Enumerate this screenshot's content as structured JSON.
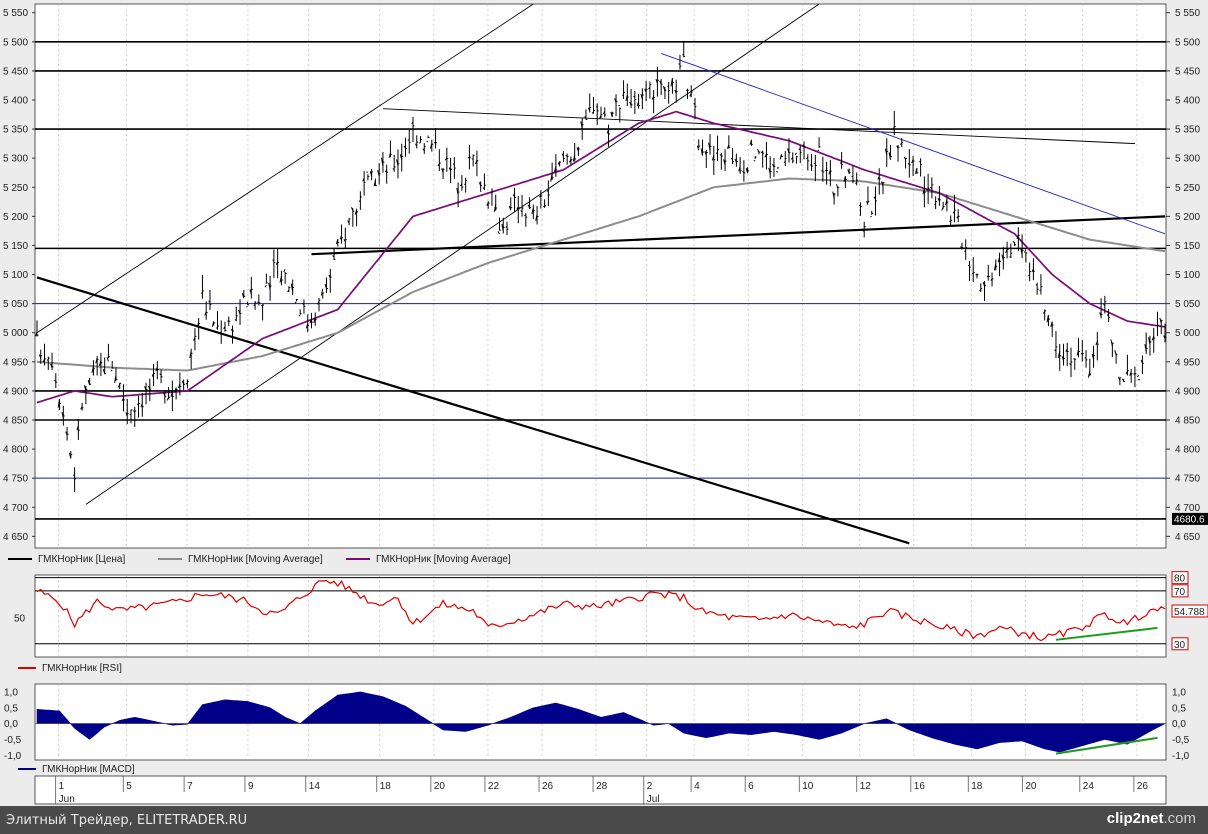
{
  "chart_data": [
    {
      "type": "candlestick",
      "ylim": [
        4630,
        5565
      ],
      "y_ticks": [
        "5 550",
        "5 500",
        "5 450",
        "5 400",
        "5 350",
        "5 300",
        "5 250",
        "5 200",
        "5 150",
        "5 100",
        "5 050",
        "5 000",
        "4 950",
        "4 900",
        "4 850",
        "4 800",
        "4 750",
        "4 700",
        "4 650"
      ],
      "y_tick_values": [
        5550,
        5500,
        5450,
        5400,
        5350,
        5300,
        5250,
        5200,
        5150,
        5100,
        5050,
        5000,
        4950,
        4900,
        4850,
        4800,
        4750,
        4700,
        4650
      ],
      "price_badge": "4680.6",
      "horizontal_levels": [
        {
          "value": 5500,
          "color": "#000000"
        },
        {
          "value": 5450,
          "color": "#000000"
        },
        {
          "value": 5350,
          "color": "#000000"
        },
        {
          "value": 5145,
          "color": "#000000"
        },
        {
          "value": 5050,
          "color": "#1a1aa8"
        },
        {
          "value": 4900,
          "color": "#000000"
        },
        {
          "value": 4850,
          "color": "#000000"
        },
        {
          "value": 4750,
          "color": "#1a1aa8"
        },
        {
          "value": 4680,
          "color": "#000000"
        }
      ],
      "close_path": [
        [
          0,
          4980
        ],
        [
          4,
          4960
        ],
        [
          8,
          4830
        ],
        [
          10,
          4760
        ],
        [
          12,
          4880
        ],
        [
          16,
          4940
        ],
        [
          20,
          4950
        ],
        [
          24,
          4870
        ],
        [
          28,
          4890
        ],
        [
          32,
          4920
        ],
        [
          36,
          4900
        ],
        [
          40,
          4935
        ],
        [
          44,
          5060
        ],
        [
          48,
          5010
        ],
        [
          52,
          5020
        ],
        [
          56,
          5060
        ],
        [
          60,
          5050
        ],
        [
          64,
          5120
        ],
        [
          68,
          5080
        ],
        [
          72,
          5020
        ],
        [
          76,
          5060
        ],
        [
          80,
          5140
        ],
        [
          84,
          5210
        ],
        [
          88,
          5250
        ],
        [
          92,
          5280
        ],
        [
          96,
          5300
        ],
        [
          100,
          5350
        ],
        [
          104,
          5330
        ],
        [
          108,
          5300
        ],
        [
          112,
          5260
        ],
        [
          116,
          5300
        ],
        [
          120,
          5240
        ],
        [
          124,
          5180
        ],
        [
          128,
          5230
        ],
        [
          132,
          5200
        ],
        [
          136,
          5240
        ],
        [
          140,
          5300
        ],
        [
          144,
          5320
        ],
        [
          148,
          5400
        ],
        [
          152,
          5360
        ],
        [
          156,
          5420
        ],
        [
          160,
          5380
        ],
        [
          164,
          5420
        ],
        [
          168,
          5400
        ],
        [
          172,
          5460
        ],
        [
          176,
          5340
        ],
        [
          180,
          5300
        ],
        [
          184,
          5310
        ],
        [
          188,
          5290
        ],
        [
          192,
          5320
        ],
        [
          196,
          5280
        ],
        [
          200,
          5300
        ],
        [
          204,
          5310
        ],
        [
          208,
          5300
        ],
        [
          212,
          5250
        ],
        [
          216,
          5290
        ],
        [
          220,
          5200
        ],
        [
          224,
          5250
        ],
        [
          228,
          5340
        ],
        [
          232,
          5300
        ],
        [
          236,
          5260
        ],
        [
          240,
          5240
        ],
        [
          244,
          5200
        ],
        [
          248,
          5130
        ],
        [
          252,
          5080
        ],
        [
          256,
          5140
        ],
        [
          260,
          5160
        ],
        [
          264,
          5120
        ],
        [
          268,
          5040
        ],
        [
          272,
          4980
        ],
        [
          276,
          4960
        ],
        [
          280,
          4940
        ],
        [
          284,
          5050
        ],
        [
          288,
          4920
        ],
        [
          292,
          4920
        ],
        [
          296,
          4990
        ],
        [
          300,
          5010
        ]
      ],
      "ma_long_path": [
        [
          0,
          4950
        ],
        [
          20,
          4940
        ],
        [
          40,
          4935
        ],
        [
          60,
          4960
        ],
        [
          80,
          5000
        ],
        [
          100,
          5070
        ],
        [
          120,
          5120
        ],
        [
          140,
          5160
        ],
        [
          160,
          5200
        ],
        [
          180,
          5250
        ],
        [
          200,
          5265
        ],
        [
          220,
          5260
        ],
        [
          240,
          5240
        ],
        [
          260,
          5200
        ],
        [
          280,
          5160
        ],
        [
          300,
          5140
        ]
      ],
      "ma_short_path": [
        [
          0,
          4880
        ],
        [
          10,
          4900
        ],
        [
          20,
          4890
        ],
        [
          40,
          4900
        ],
        [
          60,
          4990
        ],
        [
          80,
          5040
        ],
        [
          100,
          5200
        ],
        [
          120,
          5240
        ],
        [
          140,
          5280
        ],
        [
          160,
          5360
        ],
        [
          170,
          5380
        ],
        [
          180,
          5360
        ],
        [
          200,
          5330
        ],
        [
          220,
          5280
        ],
        [
          240,
          5240
        ],
        [
          260,
          5170
        ],
        [
          270,
          5100
        ],
        [
          280,
          5050
        ],
        [
          290,
          5020
        ],
        [
          300,
          5010
        ]
      ],
      "legend": [
        "ГМКНорНик [Цена]",
        "ГМКНорНик [Moving Average]",
        "ГМКНорНик [Moving Average]"
      ],
      "legend_colors": [
        "#000000",
        "#8c8c8c",
        "#7a0a7a"
      ]
    },
    {
      "type": "line",
      "ylim": [
        20,
        82
      ],
      "y_tick_label": "50",
      "right_badges": [
        "80",
        "70",
        "54.788",
        "30"
      ],
      "badge_values": [
        80,
        70,
        54.788,
        30
      ],
      "levels": [
        80,
        70,
        30
      ],
      "rsi_path": [
        [
          0,
          70
        ],
        [
          6,
          62
        ],
        [
          10,
          45
        ],
        [
          16,
          62
        ],
        [
          22,
          55
        ],
        [
          30,
          58
        ],
        [
          38,
          62
        ],
        [
          44,
          68
        ],
        [
          50,
          66
        ],
        [
          56,
          62
        ],
        [
          60,
          55
        ],
        [
          64,
          52
        ],
        [
          70,
          65
        ],
        [
          76,
          78
        ],
        [
          80,
          76
        ],
        [
          84,
          70
        ],
        [
          90,
          60
        ],
        [
          96,
          65
        ],
        [
          100,
          45
        ],
        [
          108,
          60
        ],
        [
          116,
          55
        ],
        [
          120,
          42
        ],
        [
          130,
          50
        ],
        [
          140,
          60
        ],
        [
          148,
          58
        ],
        [
          156,
          62
        ],
        [
          164,
          68
        ],
        [
          172,
          65
        ],
        [
          176,
          55
        ],
        [
          184,
          50
        ],
        [
          192,
          48
        ],
        [
          200,
          52
        ],
        [
          208,
          47
        ],
        [
          216,
          42
        ],
        [
          220,
          45
        ],
        [
          226,
          55
        ],
        [
          232,
          50
        ],
        [
          238,
          45
        ],
        [
          244,
          40
        ],
        [
          250,
          36
        ],
        [
          256,
          42
        ],
        [
          262,
          38
        ],
        [
          268,
          34
        ],
        [
          276,
          40
        ],
        [
          284,
          52
        ],
        [
          290,
          45
        ],
        [
          296,
          56
        ],
        [
          300,
          54.788
        ]
      ],
      "divergence_line": [
        [
          271,
          33
        ],
        [
          298,
          42
        ]
      ],
      "legend": [
        "ГМКНорНик [RSI]"
      ],
      "legend_colors": [
        "#dd0000"
      ]
    },
    {
      "type": "histogram",
      "ylim": [
        -1.15,
        1.25
      ],
      "y_ticks": [
        "1,0",
        "0,5",
        "0,0",
        "-0,5",
        "-1,0"
      ],
      "y_tick_values": [
        1.0,
        0.5,
        0.0,
        -0.5,
        -1.0
      ],
      "macd_path": [
        [
          0,
          0.45
        ],
        [
          6,
          0.4
        ],
        [
          10,
          -0.15
        ],
        [
          14,
          -0.5
        ],
        [
          18,
          -0.1
        ],
        [
          22,
          0.1
        ],
        [
          26,
          0.2
        ],
        [
          30,
          0.1
        ],
        [
          36,
          -0.05
        ],
        [
          40,
          -0.02
        ],
        [
          44,
          0.6
        ],
        [
          50,
          0.75
        ],
        [
          56,
          0.7
        ],
        [
          62,
          0.5
        ],
        [
          66,
          0.2
        ],
        [
          70,
          0.0
        ],
        [
          74,
          0.4
        ],
        [
          80,
          0.9
        ],
        [
          86,
          1.0
        ],
        [
          92,
          0.85
        ],
        [
          98,
          0.55
        ],
        [
          104,
          0.1
        ],
        [
          108,
          -0.2
        ],
        [
          114,
          -0.25
        ],
        [
          120,
          -0.05
        ],
        [
          126,
          0.2
        ],
        [
          132,
          0.5
        ],
        [
          138,
          0.65
        ],
        [
          144,
          0.45
        ],
        [
          150,
          0.2
        ],
        [
          156,
          0.35
        ],
        [
          160,
          0.15
        ],
        [
          164,
          -0.05
        ],
        [
          168,
          0.0
        ],
        [
          172,
          -0.3
        ],
        [
          178,
          -0.45
        ],
        [
          184,
          -0.3
        ],
        [
          190,
          -0.35
        ],
        [
          196,
          -0.25
        ],
        [
          202,
          -0.35
        ],
        [
          208,
          -0.5
        ],
        [
          214,
          -0.3
        ],
        [
          220,
          0.0
        ],
        [
          226,
          0.15
        ],
        [
          232,
          -0.2
        ],
        [
          238,
          -0.45
        ],
        [
          244,
          -0.65
        ],
        [
          250,
          -0.8
        ],
        [
          256,
          -0.6
        ],
        [
          262,
          -0.55
        ],
        [
          268,
          -0.8
        ],
        [
          272,
          -0.9
        ],
        [
          278,
          -0.7
        ],
        [
          284,
          -0.5
        ],
        [
          290,
          -0.65
        ],
        [
          296,
          -0.25
        ],
        [
          300,
          0.0
        ]
      ],
      "divergence_line": [
        [
          271,
          -0.95
        ],
        [
          298,
          -0.45
        ]
      ],
      "legend": [
        "ГМКНорНик [MACD]"
      ],
      "legend_colors": [
        "#00008b"
      ]
    }
  ],
  "x_axis": {
    "date_labels": [
      "1",
      "5",
      "7",
      "9",
      "14",
      "18",
      "20",
      "22",
      "26",
      "28",
      "2",
      "4",
      "6",
      "10",
      "12",
      "16",
      "18",
      "20",
      "24",
      "26"
    ],
    "date_index": [
      7,
      27,
      45,
      63,
      81,
      102,
      118,
      134,
      150,
      166,
      181,
      195,
      211,
      227,
      244,
      260,
      277,
      293,
      310,
      326
    ],
    "month_labels": [
      "Jun",
      "Jul"
    ],
    "month_index": [
      7,
      181
    ]
  },
  "footer": {
    "left_text": "Элитный Трейдер, ELITETRADER.RU",
    "right_text_main": "clip2net",
    "right_text_tld": ".com"
  }
}
